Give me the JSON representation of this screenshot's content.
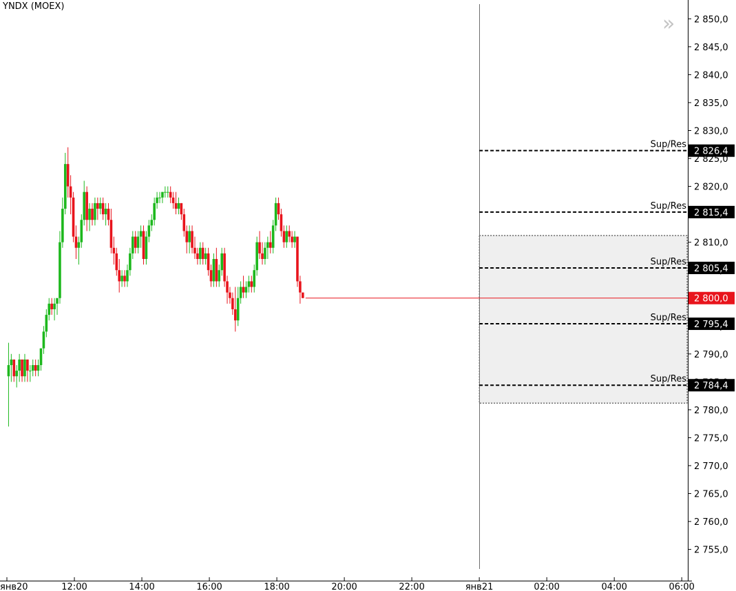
{
  "chart_data": {
    "type": "candlestick",
    "title": "YNDX (MOEX)",
    "x_ticks": [
      {
        "label": "янв20",
        "hour": 10.0
      },
      {
        "label": "12:00",
        "hour": 12.0
      },
      {
        "label": "14:00",
        "hour": 14.0
      },
      {
        "label": "16:00",
        "hour": 16.0
      },
      {
        "label": "18:00",
        "hour": 18.0
      },
      {
        "label": "20:00",
        "hour": 20.0
      },
      {
        "label": "22:00",
        "hour": 22.0
      },
      {
        "label": "янв21",
        "hour": 24.0
      },
      {
        "label": "02:00",
        "hour": 26.0
      },
      {
        "label": "04:00",
        "hour": 28.0
      },
      {
        "label": "06:00",
        "hour": 30.0
      }
    ],
    "x_range_hours": [
      10.0,
      30.2
    ],
    "y_ticks": [
      "2 755,0",
      "2 760,0",
      "2 765,0",
      "2 770,0",
      "2 775,0",
      "2 780,0",
      "2 785,0",
      "2 790,0",
      "2 795,0",
      "2 800,0",
      "2 805,0",
      "2 810,0",
      "2 815,0",
      "2 820,0",
      "2 825,0",
      "2 830,0",
      "2 835,0",
      "2 840,0",
      "2 845,0",
      "2 850,0"
    ],
    "ylim": [
      2751.5,
      2853.0
    ],
    "day_separator_hour": 24.0,
    "up_color": "#1db81d",
    "down_color": "#e8141c",
    "series": [
      {
        "t": 10.05,
        "o": 2786,
        "h": 2792,
        "l": 2777,
        "c": 2788
      },
      {
        "t": 10.13,
        "o": 2788,
        "h": 2790,
        "l": 2785,
        "c": 2789
      },
      {
        "t": 10.21,
        "o": 2789,
        "h": 2789,
        "l": 2785,
        "c": 2786
      },
      {
        "t": 10.29,
        "o": 2786,
        "h": 2788,
        "l": 2784,
        "c": 2787
      },
      {
        "t": 10.37,
        "o": 2787,
        "h": 2790,
        "l": 2785,
        "c": 2789
      },
      {
        "t": 10.45,
        "o": 2789,
        "h": 2789,
        "l": 2785,
        "c": 2786
      },
      {
        "t": 10.53,
        "o": 2786,
        "h": 2790,
        "l": 2785,
        "c": 2789
      },
      {
        "t": 10.61,
        "o": 2789,
        "h": 2789,
        "l": 2785,
        "c": 2787
      },
      {
        "t": 10.69,
        "o": 2787,
        "h": 2788,
        "l": 2785,
        "c": 2787
      },
      {
        "t": 10.77,
        "o": 2787,
        "h": 2789,
        "l": 2786,
        "c": 2788
      },
      {
        "t": 10.85,
        "o": 2788,
        "h": 2789,
        "l": 2786,
        "c": 2787
      },
      {
        "t": 10.93,
        "o": 2787,
        "h": 2789,
        "l": 2786,
        "c": 2788
      },
      {
        "t": 11.01,
        "o": 2788,
        "h": 2791,
        "l": 2787,
        "c": 2791
      },
      {
        "t": 11.09,
        "o": 2791,
        "h": 2795,
        "l": 2790,
        "c": 2794
      },
      {
        "t": 11.17,
        "o": 2794,
        "h": 2798,
        "l": 2793,
        "c": 2797
      },
      {
        "t": 11.25,
        "o": 2797,
        "h": 2800,
        "l": 2796,
        "c": 2799
      },
      {
        "t": 11.33,
        "o": 2799,
        "h": 2800,
        "l": 2797,
        "c": 2798
      },
      {
        "t": 11.41,
        "o": 2798,
        "h": 2800,
        "l": 2796,
        "c": 2799
      },
      {
        "t": 11.49,
        "o": 2799,
        "h": 2800,
        "l": 2797,
        "c": 2800
      },
      {
        "t": 11.57,
        "o": 2800,
        "h": 2812,
        "l": 2799,
        "c": 2810
      },
      {
        "t": 11.65,
        "o": 2810,
        "h": 2818,
        "l": 2809,
        "c": 2816
      },
      {
        "t": 11.73,
        "o": 2816,
        "h": 2826,
        "l": 2815,
        "c": 2824
      },
      {
        "t": 11.81,
        "o": 2824,
        "h": 2827,
        "l": 2818,
        "c": 2820
      },
      {
        "t": 11.89,
        "o": 2820,
        "h": 2822,
        "l": 2815,
        "c": 2818
      },
      {
        "t": 11.97,
        "o": 2818,
        "h": 2819,
        "l": 2810,
        "c": 2811
      },
      {
        "t": 12.05,
        "o": 2811,
        "h": 2813,
        "l": 2807,
        "c": 2809
      },
      {
        "t": 12.13,
        "o": 2809,
        "h": 2811,
        "l": 2806,
        "c": 2810
      },
      {
        "t": 12.21,
        "o": 2810,
        "h": 2815,
        "l": 2809,
        "c": 2814
      },
      {
        "t": 12.29,
        "o": 2814,
        "h": 2821,
        "l": 2813,
        "c": 2819
      },
      {
        "t": 12.37,
        "o": 2819,
        "h": 2820,
        "l": 2812,
        "c": 2814
      },
      {
        "t": 12.45,
        "o": 2814,
        "h": 2817,
        "l": 2812,
        "c": 2816
      },
      {
        "t": 12.53,
        "o": 2816,
        "h": 2817,
        "l": 2813,
        "c": 2814
      },
      {
        "t": 12.61,
        "o": 2814,
        "h": 2818,
        "l": 2813,
        "c": 2817
      },
      {
        "t": 12.69,
        "o": 2817,
        "h": 2818,
        "l": 2814,
        "c": 2816
      },
      {
        "t": 12.77,
        "o": 2816,
        "h": 2818,
        "l": 2815,
        "c": 2817
      },
      {
        "t": 12.85,
        "o": 2817,
        "h": 2818,
        "l": 2814,
        "c": 2815
      },
      {
        "t": 12.93,
        "o": 2815,
        "h": 2817,
        "l": 2813,
        "c": 2816
      },
      {
        "t": 13.01,
        "o": 2816,
        "h": 2817,
        "l": 2813,
        "c": 2814
      },
      {
        "t": 13.09,
        "o": 2814,
        "h": 2816,
        "l": 2808,
        "c": 2809
      },
      {
        "t": 13.17,
        "o": 2809,
        "h": 2811,
        "l": 2806,
        "c": 2808
      },
      {
        "t": 13.25,
        "o": 2808,
        "h": 2809,
        "l": 2804,
        "c": 2805
      },
      {
        "t": 13.33,
        "o": 2805,
        "h": 2807,
        "l": 2801,
        "c": 2803
      },
      {
        "t": 13.41,
        "o": 2803,
        "h": 2805,
        "l": 2802,
        "c": 2804
      },
      {
        "t": 13.49,
        "o": 2804,
        "h": 2805,
        "l": 2802,
        "c": 2803
      },
      {
        "t": 13.57,
        "o": 2803,
        "h": 2806,
        "l": 2802,
        "c": 2805
      },
      {
        "t": 13.65,
        "o": 2805,
        "h": 2809,
        "l": 2804,
        "c": 2808
      },
      {
        "t": 13.73,
        "o": 2808,
        "h": 2812,
        "l": 2807,
        "c": 2811
      },
      {
        "t": 13.81,
        "o": 2811,
        "h": 2812,
        "l": 2808,
        "c": 2809
      },
      {
        "t": 13.89,
        "o": 2809,
        "h": 2812,
        "l": 2808,
        "c": 2811
      },
      {
        "t": 13.97,
        "o": 2811,
        "h": 2813,
        "l": 2809,
        "c": 2812
      },
      {
        "t": 14.05,
        "o": 2812,
        "h": 2813,
        "l": 2806,
        "c": 2807
      },
      {
        "t": 14.13,
        "o": 2807,
        "h": 2812,
        "l": 2806,
        "c": 2811
      },
      {
        "t": 14.21,
        "o": 2811,
        "h": 2814,
        "l": 2810,
        "c": 2813
      },
      {
        "t": 14.29,
        "o": 2813,
        "h": 2815,
        "l": 2812,
        "c": 2814
      },
      {
        "t": 14.37,
        "o": 2814,
        "h": 2818,
        "l": 2813,
        "c": 2817
      },
      {
        "t": 14.45,
        "o": 2817,
        "h": 2819,
        "l": 2816,
        "c": 2818
      },
      {
        "t": 14.53,
        "o": 2818,
        "h": 2819,
        "l": 2817,
        "c": 2818
      },
      {
        "t": 14.61,
        "o": 2818,
        "h": 2819,
        "l": 2817,
        "c": 2819
      },
      {
        "t": 14.69,
        "o": 2819,
        "h": 2820,
        "l": 2818,
        "c": 2819
      },
      {
        "t": 14.77,
        "o": 2819,
        "h": 2820,
        "l": 2818,
        "c": 2819
      },
      {
        "t": 14.85,
        "o": 2819,
        "h": 2820,
        "l": 2817,
        "c": 2818
      },
      {
        "t": 14.93,
        "o": 2818,
        "h": 2819,
        "l": 2816,
        "c": 2817
      },
      {
        "t": 15.01,
        "o": 2817,
        "h": 2819,
        "l": 2815,
        "c": 2816
      },
      {
        "t": 15.09,
        "o": 2816,
        "h": 2818,
        "l": 2815,
        "c": 2817
      },
      {
        "t": 15.17,
        "o": 2817,
        "h": 2817,
        "l": 2814,
        "c": 2815
      },
      {
        "t": 15.25,
        "o": 2815,
        "h": 2816,
        "l": 2811,
        "c": 2812
      },
      {
        "t": 15.33,
        "o": 2812,
        "h": 2813,
        "l": 2808,
        "c": 2810
      },
      {
        "t": 15.41,
        "o": 2810,
        "h": 2813,
        "l": 2808,
        "c": 2812
      },
      {
        "t": 15.49,
        "o": 2812,
        "h": 2813,
        "l": 2808,
        "c": 2809
      },
      {
        "t": 15.57,
        "o": 2809,
        "h": 2811,
        "l": 2807,
        "c": 2808
      },
      {
        "t": 15.65,
        "o": 2808,
        "h": 2809,
        "l": 2806,
        "c": 2807
      },
      {
        "t": 15.73,
        "o": 2807,
        "h": 2810,
        "l": 2806,
        "c": 2809
      },
      {
        "t": 15.81,
        "o": 2809,
        "h": 2810,
        "l": 2806,
        "c": 2807
      },
      {
        "t": 15.89,
        "o": 2807,
        "h": 2809,
        "l": 2806,
        "c": 2808
      },
      {
        "t": 15.97,
        "o": 2808,
        "h": 2809,
        "l": 2804,
        "c": 2805
      },
      {
        "t": 16.05,
        "o": 2805,
        "h": 2806,
        "l": 2802,
        "c": 2803
      },
      {
        "t": 16.13,
        "o": 2803,
        "h": 2808,
        "l": 2802,
        "c": 2807
      },
      {
        "t": 16.21,
        "o": 2807,
        "h": 2809,
        "l": 2802,
        "c": 2803
      },
      {
        "t": 16.29,
        "o": 2803,
        "h": 2806,
        "l": 2802,
        "c": 2805
      },
      {
        "t": 16.37,
        "o": 2805,
        "h": 2809,
        "l": 2804,
        "c": 2808
      },
      {
        "t": 16.45,
        "o": 2808,
        "h": 2809,
        "l": 2802,
        "c": 2803
      },
      {
        "t": 16.53,
        "o": 2803,
        "h": 2804,
        "l": 2799,
        "c": 2801
      },
      {
        "t": 16.61,
        "o": 2801,
        "h": 2802,
        "l": 2799,
        "c": 2800
      },
      {
        "t": 16.69,
        "o": 2800,
        "h": 2801,
        "l": 2797,
        "c": 2798
      },
      {
        "t": 16.77,
        "o": 2798,
        "h": 2802,
        "l": 2794,
        "c": 2796
      },
      {
        "t": 16.85,
        "o": 2796,
        "h": 2802,
        "l": 2795,
        "c": 2800
      },
      {
        "t": 16.93,
        "o": 2800,
        "h": 2803,
        "l": 2799,
        "c": 2802
      },
      {
        "t": 17.01,
        "o": 2802,
        "h": 2804,
        "l": 2800,
        "c": 2801
      },
      {
        "t": 17.09,
        "o": 2801,
        "h": 2803,
        "l": 2800,
        "c": 2802
      },
      {
        "t": 17.17,
        "o": 2802,
        "h": 2804,
        "l": 2801,
        "c": 2803
      },
      {
        "t": 17.25,
        "o": 2803,
        "h": 2804,
        "l": 2801,
        "c": 2802
      },
      {
        "t": 17.33,
        "o": 2802,
        "h": 2806,
        "l": 2801,
        "c": 2805
      },
      {
        "t": 17.41,
        "o": 2805,
        "h": 2811,
        "l": 2804,
        "c": 2810
      },
      {
        "t": 17.49,
        "o": 2810,
        "h": 2812,
        "l": 2807,
        "c": 2808
      },
      {
        "t": 17.57,
        "o": 2808,
        "h": 2810,
        "l": 2806,
        "c": 2807
      },
      {
        "t": 17.65,
        "o": 2807,
        "h": 2810,
        "l": 2806,
        "c": 2809
      },
      {
        "t": 17.73,
        "o": 2809,
        "h": 2811,
        "l": 2807,
        "c": 2810
      },
      {
        "t": 17.81,
        "o": 2810,
        "h": 2812,
        "l": 2808,
        "c": 2809
      },
      {
        "t": 17.89,
        "o": 2809,
        "h": 2814,
        "l": 2808,
        "c": 2813
      },
      {
        "t": 17.97,
        "o": 2813,
        "h": 2818,
        "l": 2812,
        "c": 2817
      },
      {
        "t": 18.05,
        "o": 2817,
        "h": 2818,
        "l": 2814,
        "c": 2815
      },
      {
        "t": 18.13,
        "o": 2815,
        "h": 2816,
        "l": 2811,
        "c": 2812
      },
      {
        "t": 18.21,
        "o": 2812,
        "h": 2813,
        "l": 2809,
        "c": 2810
      },
      {
        "t": 18.29,
        "o": 2810,
        "h": 2813,
        "l": 2809,
        "c": 2812
      },
      {
        "t": 18.37,
        "o": 2812,
        "h": 2813,
        "l": 2810,
        "c": 2811
      },
      {
        "t": 18.45,
        "o": 2811,
        "h": 2812,
        "l": 2809,
        "c": 2810
      },
      {
        "t": 18.53,
        "o": 2810,
        "h": 2812,
        "l": 2809,
        "c": 2811
      },
      {
        "t": 18.61,
        "o": 2811,
        "h": 2811,
        "l": 2802,
        "c": 2803
      },
      {
        "t": 18.69,
        "o": 2803,
        "h": 2804,
        "l": 2799,
        "c": 2801
      },
      {
        "t": 18.77,
        "o": 2801,
        "h": 2801,
        "l": 2800,
        "c": 2800
      }
    ],
    "current_price": {
      "value": 2800.0,
      "label": "2 800,0",
      "color": "#e8141c"
    },
    "levels": [
      {
        "value": 2826.4,
        "label": "2 826,4",
        "name": "Sup/Res"
      },
      {
        "value": 2815.4,
        "label": "2 815,4",
        "name": "Sup/Res"
      },
      {
        "value": 2805.4,
        "label": "2 805,4",
        "name": "Sup/Res"
      },
      {
        "value": 2795.4,
        "label": "2 795,4",
        "name": "Sup/Res"
      },
      {
        "value": 2784.4,
        "label": "2 784,4",
        "name": "Sup/Res"
      }
    ],
    "zone": {
      "start_hour": 24.0,
      "top": 2811.2,
      "bottom": 2781.2,
      "fill": "#efefef"
    }
  },
  "nav": {
    "glyph": "»",
    "icon": "chevron-double-right-icon"
  }
}
